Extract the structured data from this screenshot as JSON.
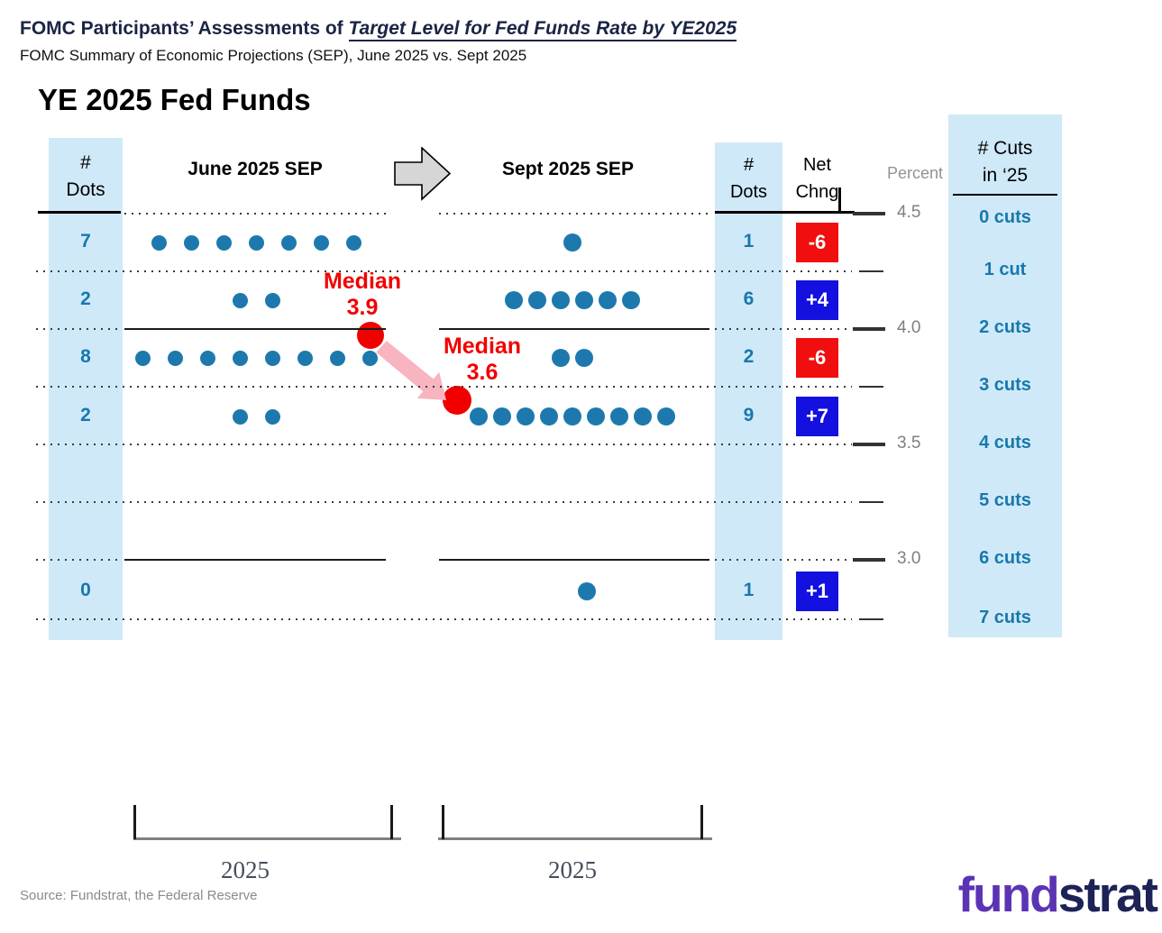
{
  "header": {
    "title_prefix": "FOMC Participants’ Assessments of ",
    "title_emphasis": "Target Level for Fed Funds Rate by YE2025",
    "subtitle": "FOMC Summary of Economic Projections (SEP), June 2025 vs. Sept 2025",
    "chart_title": "YE 2025 Fed Funds"
  },
  "table": {
    "left_dots_header": [
      "#",
      "Dots"
    ],
    "right_dots_header": [
      "#",
      "Dots"
    ],
    "net_chng_header": [
      "Net",
      "Chng"
    ],
    "percent_label": "Percent",
    "cuts_header": [
      "# Cuts",
      "in ‘25"
    ]
  },
  "plots": {
    "june_title": "June 2025 SEP",
    "sept_title": "Sept 2025 SEP",
    "june_axis_label": "2025",
    "sept_axis_label": "2025"
  },
  "annotations": {
    "median_june_label": "Median",
    "median_june_value": "3.9",
    "median_sept_label": "Median",
    "median_sept_value": "3.6"
  },
  "source": "Source: Fundstrat, the Federal Reserve",
  "logo": {
    "part1": "fund",
    "part2": "strat"
  },
  "colors": {
    "column_bg": "#cfe9f9",
    "dot": "#1d79ad",
    "teal_text": "#1878ab",
    "negative_box": "#f10e0e",
    "positive_box": "#1410e0",
    "median_red": "#f20000",
    "arrow_pink": "#f8b4c0",
    "grid": "#3c3c3c"
  },
  "chart_data": {
    "type": "scatter",
    "subtype": "fomc-dot-plot-comparison",
    "title": "YE 2025 Fed Funds",
    "subtitle": "FOMC Summary of Economic Projections (SEP), June 2025 vs. Sept 2025",
    "y_axis_label": "Percent",
    "y_tick_labels": [
      "4.5",
      "4.0",
      "3.5",
      "3.0"
    ],
    "rate_levels": [
      4.5,
      4.25,
      4.0,
      3.75,
      3.5,
      3.25,
      3.0,
      2.75
    ],
    "grid": "dotted horizontal line at every 0.25% level; solid lines at 4.0 and 3.0",
    "legend": "none",
    "series": [
      {
        "name": "June 2025 SEP",
        "x_label": "2025",
        "median": 3.9,
        "dot_counts_by_row": [
          7,
          2,
          8,
          2,
          0,
          0,
          0
        ]
      },
      {
        "name": "Sept 2025 SEP",
        "x_label": "2025",
        "median": 3.6,
        "dot_counts_by_row": [
          1,
          6,
          2,
          9,
          0,
          0,
          1
        ]
      }
    ],
    "rows": [
      {
        "rate_bin": "4.375",
        "june_dots": "7",
        "sept_dots": "1",
        "net_chng": "-6",
        "chng_sign": "negative"
      },
      {
        "rate_bin": "4.125",
        "june_dots": "2",
        "sept_dots": "6",
        "net_chng": "+4",
        "chng_sign": "positive"
      },
      {
        "rate_bin": "3.875",
        "june_dots": "8",
        "sept_dots": "2",
        "net_chng": "-6",
        "chng_sign": "negative"
      },
      {
        "rate_bin": "3.625",
        "june_dots": "2",
        "sept_dots": "9",
        "net_chng": "+7",
        "chng_sign": "positive"
      },
      {
        "rate_bin": "3.375",
        "june_dots": "",
        "sept_dots": "",
        "net_chng": "",
        "chng_sign": ""
      },
      {
        "rate_bin": "3.125",
        "june_dots": "",
        "sept_dots": "",
        "net_chng": "",
        "chng_sign": ""
      },
      {
        "rate_bin": "2.875",
        "june_dots": "0",
        "sept_dots": "1",
        "net_chng": "+1",
        "chng_sign": "positive"
      }
    ],
    "cuts_labels": [
      "0 cuts",
      "1 cut",
      "2 cuts",
      "3 cuts",
      "4 cuts",
      "5 cuts",
      "6 cuts",
      "7 cuts"
    ]
  }
}
